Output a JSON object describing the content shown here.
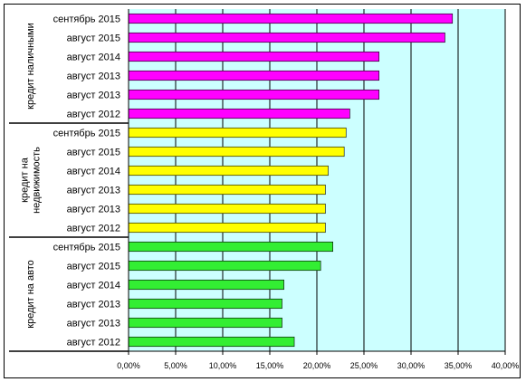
{
  "chart_data": {
    "type": "bar",
    "orientation": "horizontal",
    "grid": true,
    "xlim": [
      0,
      40
    ],
    "x_ticks": [
      "0,00%",
      "5,00%",
      "10,00%",
      "15,00%",
      "20,00%",
      "25,00%",
      "30,00%",
      "35,00%",
      "40,00%"
    ],
    "colors": {
      "plot_bg": "#CCFFFF",
      "grid": "#000000",
      "bar_stroke": "#000000"
    },
    "groups": [
      {
        "name": "кредит наличными",
        "color": "#FF00FF",
        "categories": [
          "сентябрь 2015",
          "август 2015",
          "август 2014",
          "август 2013",
          "август 2013",
          "август 2012"
        ],
        "values": [
          34.4,
          33.6,
          26.6,
          26.6,
          26.6,
          23.5
        ]
      },
      {
        "name": "кредит на недвижимость",
        "color": "#FFFF00",
        "categories": [
          "сентябрь 2015",
          "август 2015",
          "август 2014",
          "август 2013",
          "август 2013",
          "август 2012"
        ],
        "values": [
          23.1,
          22.9,
          21.2,
          20.9,
          20.9,
          20.9
        ]
      },
      {
        "name": "кредит на авто",
        "color": "#33EE33",
        "categories": [
          "сентябрь 2015",
          "август 2015",
          "август 2014",
          "август 2013",
          "август 2013",
          "август 2012"
        ],
        "values": [
          21.7,
          20.4,
          16.5,
          16.3,
          16.3,
          17.6
        ]
      }
    ]
  }
}
